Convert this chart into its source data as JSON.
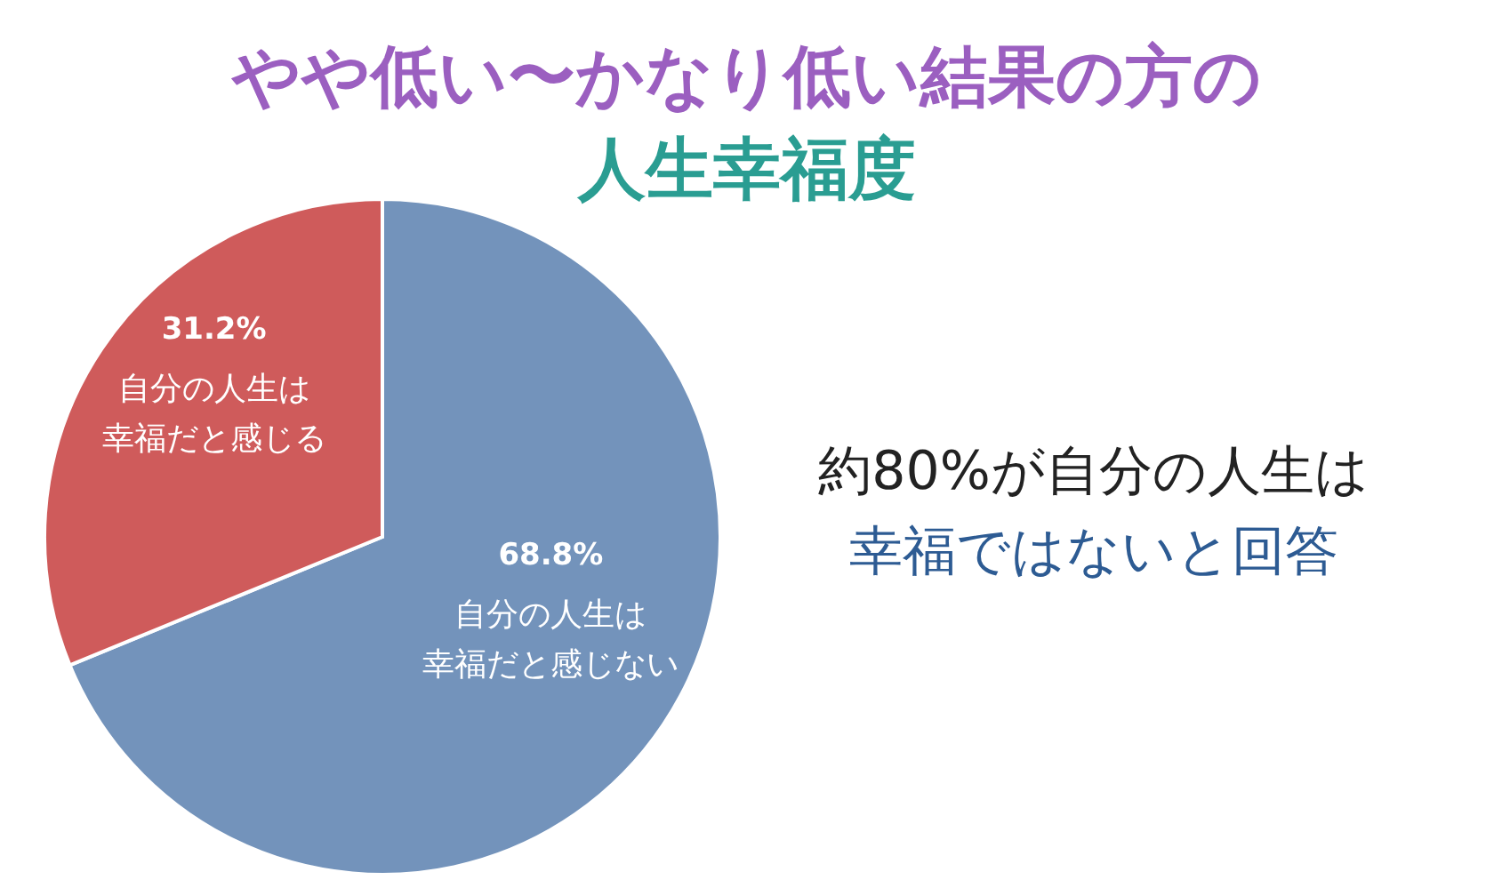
{
  "chart_data": {
    "type": "pie",
    "title": "やや低い〜かなり低い結果の方の",
    "subtitle": "人生幸福度",
    "categories": [
      "自分の人生は幸福だと感じない",
      "自分の人生は幸福だと感じる"
    ],
    "values": [
      68.8,
      31.2
    ],
    "colors": [
      "#7393bb",
      "#cf5b5b"
    ],
    "value_labels": [
      "68.8%",
      "31.2%"
    ],
    "annotations": [
      "約80%が自分の人生は",
      "幸福ではないと回答"
    ]
  }
}
